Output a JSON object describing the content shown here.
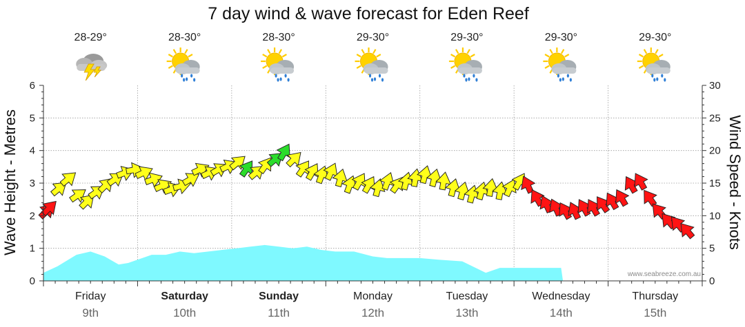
{
  "chart_data": {
    "type": "area",
    "title": "7 day wind & wave forecast for Eden Reef",
    "y_left": {
      "label": "Wave Height - Metres",
      "range": [
        0,
        6
      ],
      "ticks": [
        0,
        1,
        2,
        3,
        4,
        5,
        6
      ]
    },
    "y_right": {
      "label": "Wind Speed - Knots",
      "range": [
        0,
        30
      ],
      "ticks": [
        0,
        5,
        10,
        15,
        20,
        25,
        30
      ]
    },
    "x_range_days": [
      0,
      7
    ],
    "days": [
      {
        "name": "Friday",
        "date": "9th",
        "bold": false
      },
      {
        "name": "Saturday",
        "date": "10th",
        "bold": true
      },
      {
        "name": "Sunday",
        "date": "11th",
        "bold": true
      },
      {
        "name": "Monday",
        "date": "12th",
        "bold": false
      },
      {
        "name": "Tuesday",
        "date": "13th",
        "bold": false
      },
      {
        "name": "Wednesday",
        "date": "14th",
        "bold": false
      },
      {
        "name": "Thursday",
        "date": "15th",
        "bold": false
      }
    ],
    "temperatures": [
      "28-29°",
      "28-30°",
      "28-30°",
      "29-30°",
      "29-30°",
      "29-30°",
      "29-30°"
    ],
    "weather_icons": [
      "thunderstorm-icon",
      "sun-cloud-rain-icon",
      "sun-cloud-rain-icon",
      "sun-cloud-rain-icon",
      "sun-cloud-rain-icon",
      "sun-cloud-rain-icon",
      "sun-cloud-rain-icon"
    ],
    "series": [
      {
        "name": "Wave Height",
        "unit": "m",
        "color": "#7ff9ff",
        "x": [
          0,
          0.15,
          0.35,
          0.5,
          0.65,
          0.8,
          0.9,
          1.0,
          1.15,
          1.3,
          1.45,
          1.6,
          1.75,
          1.9,
          2.05,
          2.2,
          2.35,
          2.5,
          2.65,
          2.8,
          2.95,
          3.1,
          3.3,
          3.5,
          3.65,
          3.8,
          4.0,
          4.2,
          4.45,
          4.7,
          4.85,
          5.0,
          5.5,
          5.52
        ],
        "y": [
          0.25,
          0.45,
          0.8,
          0.9,
          0.75,
          0.5,
          0.55,
          0.65,
          0.8,
          0.8,
          0.9,
          0.85,
          0.9,
          0.95,
          1.0,
          1.05,
          1.1,
          1.05,
          1.0,
          1.05,
          0.95,
          0.9,
          0.9,
          0.75,
          0.7,
          0.7,
          0.7,
          0.65,
          0.6,
          0.25,
          0.4,
          0.4,
          0.4,
          0
        ]
      },
      {
        "name": "Wind Speed",
        "unit": "knots",
        "x": [
          0.02,
          0.05,
          0.15,
          0.25,
          0.35,
          0.45,
          0.55,
          0.65,
          0.75,
          0.85,
          0.95,
          1.05,
          1.15,
          1.25,
          1.35,
          1.45,
          1.55,
          1.65,
          1.75,
          1.85,
          1.95,
          2.05,
          2.15,
          2.25,
          2.35,
          2.45,
          2.55,
          2.65,
          2.75,
          2.85,
          2.95,
          3.05,
          3.15,
          3.25,
          3.35,
          3.45,
          3.55,
          3.65,
          3.75,
          3.85,
          3.95,
          4.05,
          4.15,
          4.25,
          4.35,
          4.45,
          4.55,
          4.65,
          4.75,
          4.85,
          4.95,
          5.05,
          5.15,
          5.25,
          5.35,
          5.45,
          5.55,
          5.65,
          5.75,
          5.85,
          5.95,
          6.05,
          6.15,
          6.25,
          6.35,
          6.45,
          6.55,
          6.65,
          6.75,
          6.85
        ],
        "y": [
          10.5,
          11,
          14,
          15.5,
          13,
          12,
          13.5,
          14.5,
          15.5,
          16.5,
          17,
          16.5,
          15.5,
          14.5,
          14,
          14.5,
          15.5,
          17,
          16.5,
          17,
          17.5,
          18,
          17,
          16.5,
          17.5,
          18.5,
          19.5,
          18.5,
          17,
          16.5,
          16,
          16.5,
          15.5,
          14.5,
          15,
          14.5,
          14,
          15,
          14.5,
          15,
          15.5,
          16,
          15.5,
          15,
          14,
          13.5,
          13,
          13.5,
          14,
          13.5,
          14,
          15,
          14.5,
          12.5,
          11.5,
          11,
          10.5,
          10.5,
          11,
          11,
          11.5,
          12,
          12.5,
          14.5,
          15,
          12.5,
          10.5,
          9,
          8.5,
          7.5
        ],
        "dir_deg": [
          225,
          225,
          230,
          230,
          235,
          225,
          235,
          225,
          235,
          250,
          260,
          245,
          250,
          245,
          250,
          255,
          240,
          245,
          245,
          240,
          245,
          230,
          215,
          230,
          215,
          230,
          210,
          225,
          215,
          210,
          200,
          205,
          195,
          200,
          210,
          210,
          195,
          200,
          215,
          195,
          190,
          195,
          195,
          190,
          195,
          195,
          195,
          195,
          190,
          190,
          205,
          210,
          155,
          150,
          155,
          155,
          150,
          155,
          150,
          150,
          145,
          150,
          150,
          150,
          150,
          145,
          140,
          140,
          140,
          140
        ]
      }
    ],
    "wind_colors": {
      "green": "#2bdc2b",
      "yellow": "#ffff1a",
      "red": "#ff1414"
    },
    "credit": "www.seabreeze.com.au",
    "grid": true,
    "legend": "none"
  }
}
